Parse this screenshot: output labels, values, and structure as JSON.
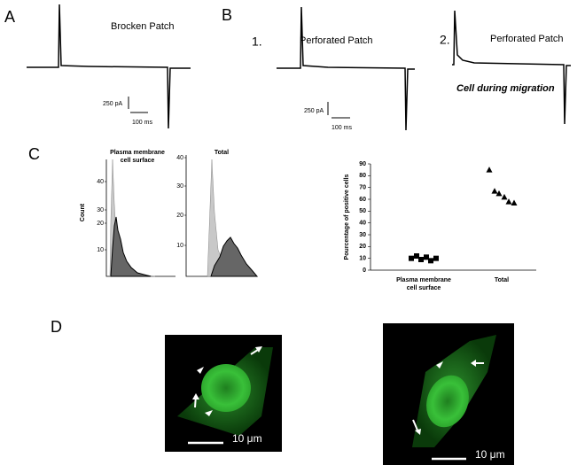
{
  "panel_a": {
    "label": "A",
    "trace_title": "Brocken Patch",
    "scale_current": "250 pA",
    "scale_time": "100 ms"
  },
  "panel_b": {
    "label": "B",
    "left_number": "1.",
    "left_title": "Perforated Patch",
    "right_number": "2.",
    "right_title": "Perforated Patch",
    "right_note": "Cell during migration",
    "scale_current": "250 pA",
    "scale_time": "100 ms"
  },
  "panel_c": {
    "label": "C",
    "histogram_left": {
      "title_lines": [
        "Plasma membrane",
        "cell surface"
      ],
      "y_label": "Count",
      "yticks": [
        40,
        30,
        20,
        10
      ]
    },
    "histogram_right": {
      "title": "Total",
      "yticks": [
        40,
        30,
        20,
        10
      ]
    },
    "dot_plot": {
      "type": "scatter",
      "y_label": "Pourcentage of positive cells",
      "categories": [
        [
          "Plasma membrane",
          "cell surface"
        ],
        [
          "Total"
        ]
      ],
      "series": [
        {
          "marker": "square",
          "color": "#000000",
          "values": [
            10,
            12,
            9,
            11,
            8,
            10
          ]
        },
        {
          "marker": "triangle",
          "color": "#000000",
          "values": [
            85,
            67,
            65,
            62,
            58,
            57
          ]
        }
      ],
      "ylim": [
        0,
        90
      ],
      "yticks": [
        0,
        10,
        20,
        30,
        40,
        50,
        60,
        70,
        80,
        90
      ]
    }
  },
  "panel_d": {
    "label": "D",
    "scale_left": "10 μm",
    "scale_right": "10 μm"
  }
}
